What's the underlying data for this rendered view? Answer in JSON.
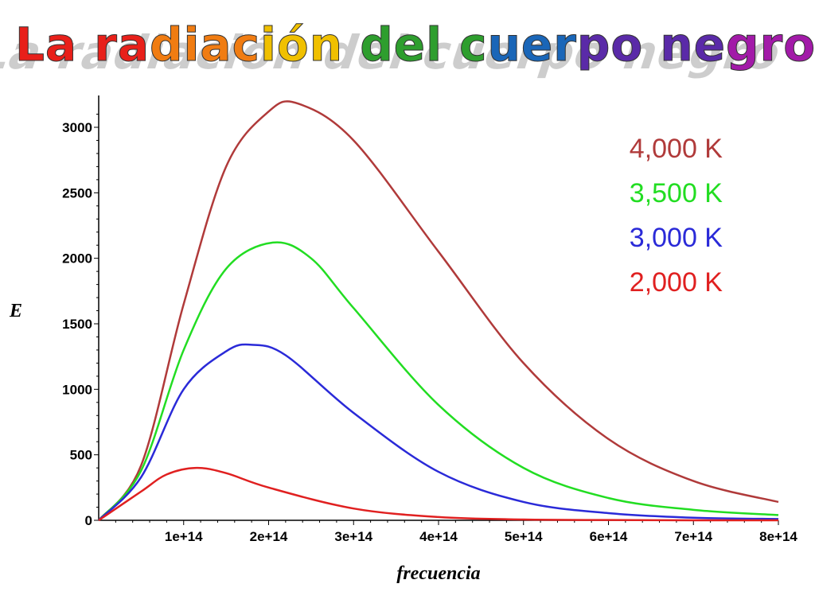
{
  "title": "La radiación del cuerpo negro",
  "title_colors": [
    "#e8201a",
    "#f07c12",
    "#f0c000",
    "#2e9e2e",
    "#1a66b8",
    "#5a2aa8",
    "#a21aa8"
  ],
  "chart_data": {
    "type": "line",
    "title": "La radiación del cuerpo negro",
    "xlabel": "frecuencia",
    "ylabel": "E",
    "xlim": [
      0,
      800000000000000.0
    ],
    "ylim": [
      0,
      3200
    ],
    "x_ticks": [
      100000000000000.0,
      200000000000000.0,
      300000000000000.0,
      400000000000000.0,
      500000000000000.0,
      600000000000000.0,
      700000000000000.0,
      800000000000000.0
    ],
    "x_tick_labels": [
      "1e+14",
      "2e+14",
      "3e+14",
      "4e+14",
      "5e+14",
      "6e+14",
      "7e+14",
      "8e+14"
    ],
    "y_ticks": [
      0,
      500,
      1000,
      1500,
      2000,
      2500,
      3000
    ],
    "y_tick_labels": [
      "0",
      "500",
      "1000",
      "1500",
      "2000",
      "2500",
      "3000"
    ],
    "grid": false,
    "legend_position": "top-right",
    "series": [
      {
        "name": "4,000 K",
        "color": "#b03a3a",
        "x": [
          0,
          50000000000000.0,
          100000000000000.0,
          150000000000000.0,
          200000000000000.0,
          235000000000000.0,
          300000000000000.0,
          400000000000000.0,
          500000000000000.0,
          600000000000000.0,
          700000000000000.0,
          800000000000000.0
        ],
        "values": [
          0,
          420,
          1650,
          2700,
          3120,
          3180,
          2900,
          2050,
          1200,
          620,
          300,
          140
        ]
      },
      {
        "name": "3,500 K",
        "color": "#22dd22",
        "x": [
          0,
          50000000000000.0,
          100000000000000.0,
          150000000000000.0,
          205000000000000.0,
          250000000000000.0,
          300000000000000.0,
          400000000000000.0,
          500000000000000.0,
          600000000000000.0,
          700000000000000.0,
          800000000000000.0
        ],
        "values": [
          0,
          380,
          1300,
          1920,
          2120,
          2000,
          1620,
          880,
          400,
          170,
          80,
          40
        ]
      },
      {
        "name": "3,000 K",
        "color": "#2a2ad8",
        "x": [
          0,
          50000000000000.0,
          100000000000000.0,
          150000000000000.0,
          180000000000000.0,
          220000000000000.0,
          300000000000000.0,
          400000000000000.0,
          500000000000000.0,
          600000000000000.0,
          700000000000000.0,
          800000000000000.0
        ],
        "values": [
          0,
          330,
          1000,
          1290,
          1340,
          1260,
          820,
          370,
          140,
          55,
          20,
          10
        ]
      },
      {
        "name": "2,000 K",
        "color": "#e02020",
        "x": [
          0,
          50000000000000.0,
          80000000000000.0,
          115000000000000.0,
          150000000000000.0,
          200000000000000.0,
          300000000000000.0,
          400000000000000.0,
          500000000000000.0,
          600000000000000.0,
          700000000000000.0,
          800000000000000.0
        ],
        "values": [
          0,
          220,
          350,
          400,
          360,
          250,
          90,
          25,
          6,
          2,
          0,
          0
        ]
      }
    ]
  }
}
